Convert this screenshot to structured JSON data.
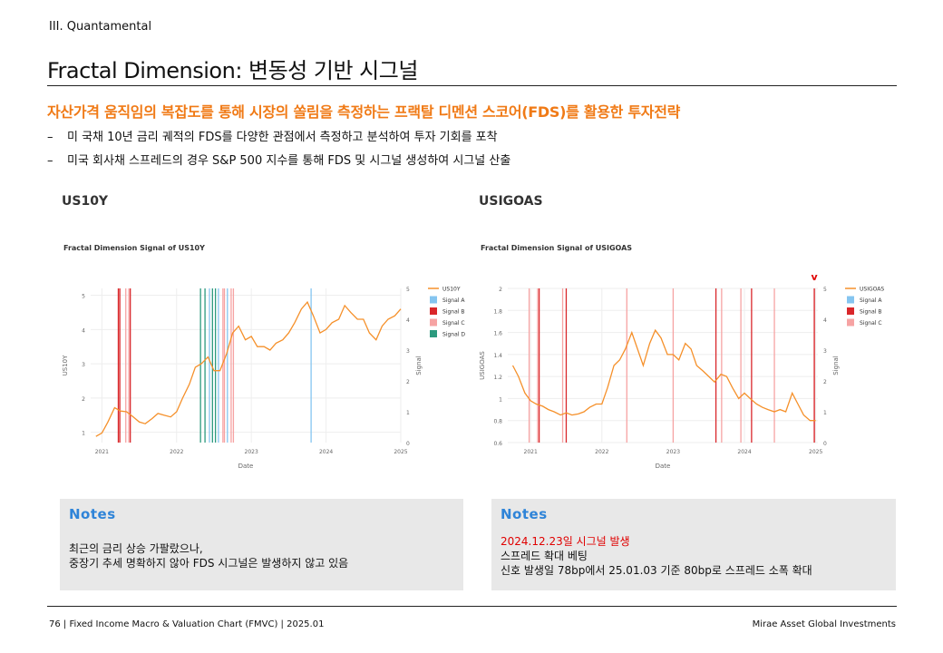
{
  "section": "III. Quantamental",
  "title": "Fractal Dimension: 변동성 기반 시그널",
  "subtitle": "자산가격 움직임의 복잡도를 통해 시장의 쏠림을 측정하는 프랙탈 디멘션 스코어(FDS)를 활용한 투자전략",
  "bullets": [
    "미 국채 10년 금리 궤적의 FDS를 다양한 관점에서 측정하고 분석하여 투자 기회를 포착",
    "미국 회사채 스프레드의 경우 S&P 500 지수를 통해 FDS 및 시그널 생성하여 시그널 산출"
  ],
  "colors": {
    "accent": "#f07a16",
    "line": "#f5902a",
    "signal_a": "#85c5f0",
    "signal_b": "#d9262a",
    "signal_c": "#f6a3a3",
    "signal_d": "#2c9a7e",
    "notes_title": "#2f84d8",
    "notes_red": "#e00000"
  },
  "chart_data": [
    {
      "type": "line",
      "heading": "US10Y",
      "title": "Fractal Dimension Signal of US10Y",
      "xlabel": "Date",
      "ylabel": "US10Y",
      "y2label": "Signal",
      "xlim": [
        2020.85,
        2025.0
      ],
      "ylim": [
        0.7,
        5.2
      ],
      "y2lim": [
        0,
        5
      ],
      "xticks": [
        "2021",
        "2022",
        "2023",
        "2024",
        "2025"
      ],
      "yticks": [
        1,
        2,
        3,
        4,
        5
      ],
      "y2ticks": [
        0,
        1,
        2,
        3,
        4,
        5
      ],
      "grid": true,
      "legend_position": "right",
      "legend": [
        "US10Y",
        "Signal A",
        "Signal B",
        "Signal C",
        "Signal D"
      ],
      "series": [
        {
          "name": "US10Y",
          "x": [
            2020.92,
            2021.0,
            2021.08,
            2021.17,
            2021.25,
            2021.33,
            2021.42,
            2021.5,
            2021.58,
            2021.67,
            2021.75,
            2021.83,
            2021.92,
            2022.0,
            2022.08,
            2022.17,
            2022.25,
            2022.33,
            2022.42,
            2022.5,
            2022.58,
            2022.67,
            2022.75,
            2022.83,
            2022.92,
            2023.0,
            2023.08,
            2023.17,
            2023.25,
            2023.33,
            2023.42,
            2023.5,
            2023.58,
            2023.67,
            2023.75,
            2023.83,
            2023.92,
            2024.0,
            2024.08,
            2024.17,
            2024.25,
            2024.33,
            2024.42,
            2024.5,
            2024.58,
            2024.67,
            2024.75,
            2024.83,
            2024.92,
            2025.0
          ],
          "y": [
            0.88,
            0.98,
            1.3,
            1.72,
            1.62,
            1.6,
            1.45,
            1.3,
            1.25,
            1.4,
            1.55,
            1.5,
            1.45,
            1.6,
            2.0,
            2.4,
            2.9,
            3.0,
            3.2,
            2.8,
            2.8,
            3.3,
            3.9,
            4.1,
            3.7,
            3.8,
            3.5,
            3.5,
            3.4,
            3.6,
            3.7,
            3.9,
            4.2,
            4.6,
            4.8,
            4.4,
            3.9,
            4.0,
            4.2,
            4.3,
            4.7,
            4.5,
            4.3,
            4.3,
            3.9,
            3.7,
            4.1,
            4.3,
            4.4,
            4.6
          ]
        }
      ],
      "signals": [
        {
          "type": "Signal B",
          "x": [
            2021.22,
            2021.24,
            2021.38
          ]
        },
        {
          "type": "Signal C",
          "x": [
            2021.32,
            2021.36,
            2022.62,
            2022.64,
            2022.73,
            2022.76
          ]
        },
        {
          "type": "Signal D",
          "x": [
            2022.32,
            2022.38,
            2022.48,
            2022.52
          ]
        },
        {
          "type": "Signal A",
          "x": [
            2022.44,
            2022.56,
            2022.68,
            2023.8
          ]
        }
      ]
    },
    {
      "type": "line",
      "heading": "USIGOAS",
      "title": "Fractal Dimension Signal of USIGOAS",
      "xlabel": "Date",
      "ylabel": "USIGOAS",
      "y2label": "Signal",
      "xlim": [
        2020.68,
        2025.03
      ],
      "ylim": [
        0.6,
        2.0
      ],
      "y2lim": [
        0,
        5
      ],
      "xticks": [
        "2021",
        "2022",
        "2023",
        "2024",
        "2025"
      ],
      "yticks": [
        0.6,
        0.8,
        1,
        1.2,
        1.4,
        1.6,
        1.8,
        2
      ],
      "y2ticks": [
        0,
        1,
        2,
        3,
        4,
        5
      ],
      "grid": true,
      "legend_position": "right",
      "legend": [
        "USIGOAS",
        "Signal A",
        "Signal B",
        "Signal C"
      ],
      "marker": "v",
      "series": [
        {
          "name": "USIGOAS",
          "x": [
            2020.75,
            2020.83,
            2020.92,
            2021.0,
            2021.08,
            2021.17,
            2021.25,
            2021.33,
            2021.42,
            2021.5,
            2021.58,
            2021.67,
            2021.75,
            2021.83,
            2021.92,
            2022.0,
            2022.08,
            2022.17,
            2022.25,
            2022.33,
            2022.42,
            2022.5,
            2022.58,
            2022.67,
            2022.75,
            2022.83,
            2022.92,
            2023.0,
            2023.08,
            2023.17,
            2023.25,
            2023.33,
            2023.42,
            2023.5,
            2023.58,
            2023.67,
            2023.75,
            2023.83,
            2023.92,
            2024.0,
            2024.08,
            2024.17,
            2024.25,
            2024.33,
            2024.42,
            2024.5,
            2024.58,
            2024.67,
            2024.75,
            2024.83,
            2024.92,
            2025.0
          ],
          "y": [
            1.3,
            1.2,
            1.05,
            0.98,
            0.95,
            0.93,
            0.9,
            0.88,
            0.85,
            0.87,
            0.85,
            0.86,
            0.88,
            0.92,
            0.95,
            0.95,
            1.1,
            1.3,
            1.35,
            1.45,
            1.6,
            1.45,
            1.3,
            1.5,
            1.62,
            1.55,
            1.4,
            1.4,
            1.35,
            1.5,
            1.45,
            1.3,
            1.25,
            1.2,
            1.15,
            1.22,
            1.2,
            1.1,
            1.0,
            1.05,
            1.0,
            0.95,
            0.92,
            0.9,
            0.88,
            0.9,
            0.88,
            1.05,
            0.95,
            0.85,
            0.8,
            0.8
          ]
        }
      ],
      "signals": [
        {
          "type": "Signal C",
          "x": [
            2020.98,
            2021.1,
            2021.45,
            2022.35,
            2023.0,
            2023.68,
            2023.95,
            2024.42,
            2024.98
          ]
        },
        {
          "type": "Signal B",
          "x": [
            2021.12,
            2021.5,
            2023.6,
            2024.1,
            2024.98
          ]
        }
      ]
    }
  ],
  "notes": [
    {
      "title": "Notes",
      "lines": [
        {
          "text": "최근의 금리 상승 가팔랐으나,",
          "red": false
        },
        {
          "text": "중장기 추세 명확하지 않아 FDS 시그널은 발생하지 않고 있음",
          "red": false
        }
      ]
    },
    {
      "title": "Notes",
      "lines": [
        {
          "text": "2024.12.23일 시그널 발생",
          "red": true
        },
        {
          "text": "스프레드 확대 베팅",
          "red": false
        },
        {
          "text": "신호 발생일 78bp에서 25.01.03 기준 80bp로 스프레드 소폭 확대",
          "red": false
        }
      ]
    }
  ],
  "footer": {
    "left": "76 | Fixed Income Macro & Valuation Chart (FMVC) | 2025.01",
    "right": "Mirae Asset Global Investments"
  }
}
